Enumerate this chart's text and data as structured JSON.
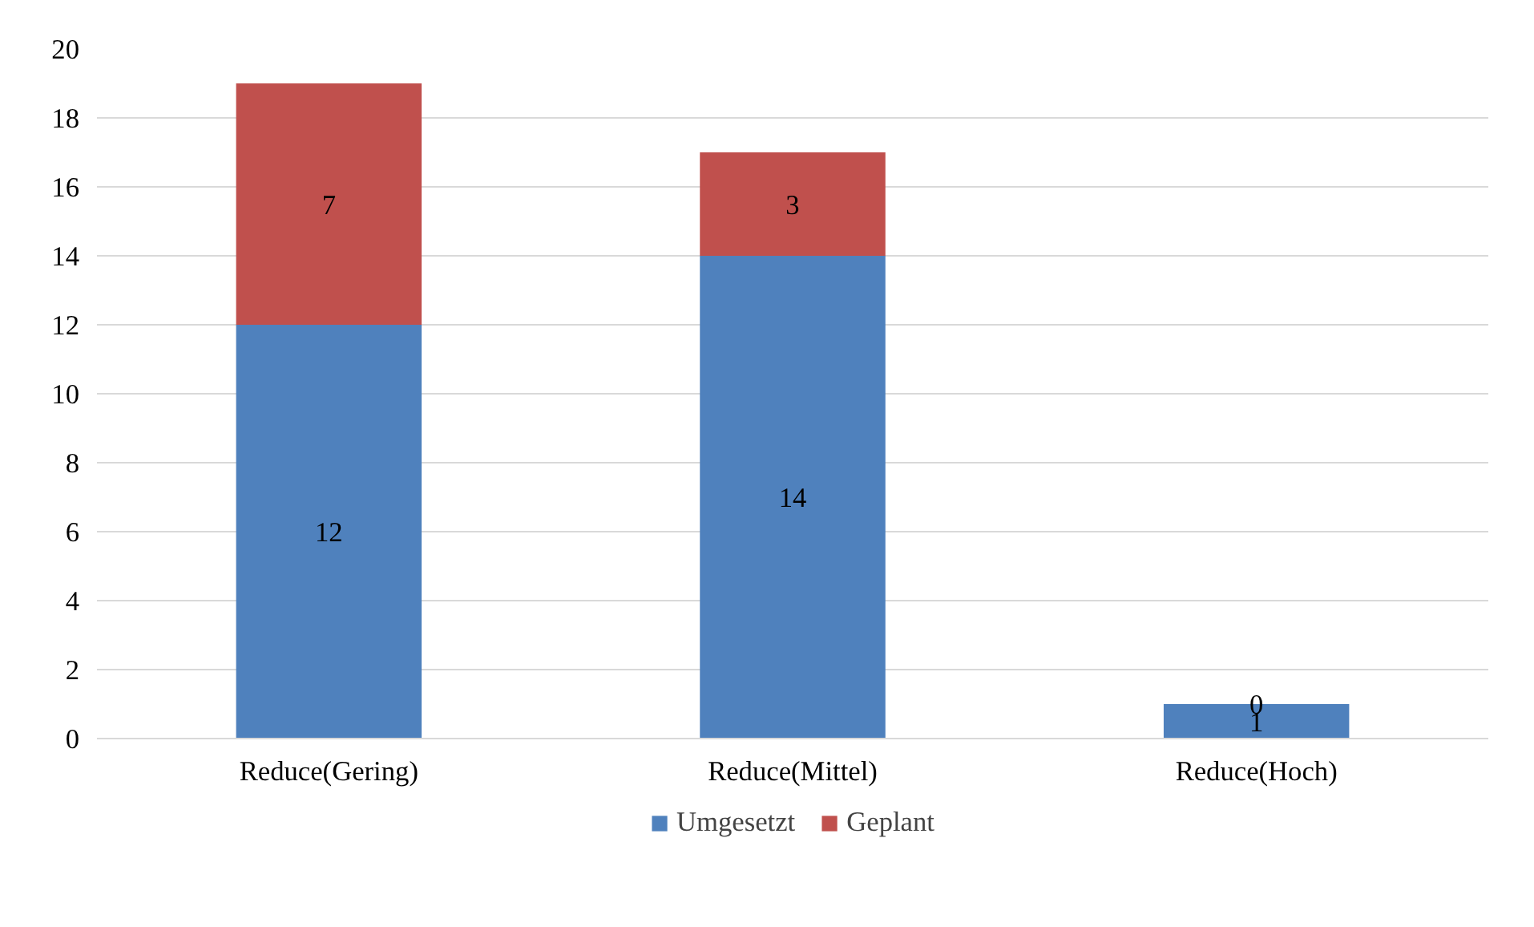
{
  "chart_data": {
    "type": "bar",
    "stacked": true,
    "categories": [
      "Reduce(Gering)",
      "Reduce(Mittel)",
      "Reduce(Hoch)"
    ],
    "series": [
      {
        "name": "Umgesetzt",
        "color": "#4f81bd",
        "values": [
          12,
          14,
          1
        ]
      },
      {
        "name": "Geplant",
        "color": "#c0504d",
        "values": [
          7,
          3,
          0
        ]
      }
    ],
    "ylim": [
      0,
      20
    ],
    "yticks": [
      0,
      2,
      4,
      6,
      8,
      10,
      12,
      14,
      16,
      18,
      20
    ],
    "grid": "y",
    "legend": "bottom",
    "data_labels": true
  }
}
